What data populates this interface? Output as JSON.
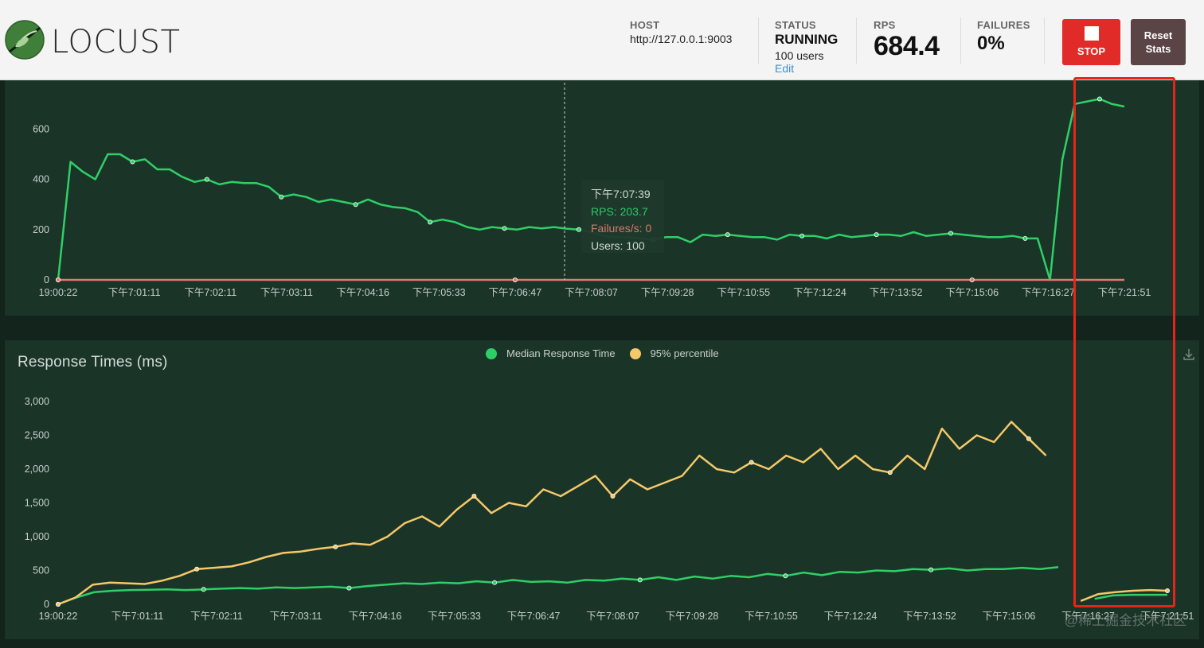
{
  "header": {
    "logo_text": "LOCUST",
    "host_label": "HOST",
    "host_value": "http://127.0.0.1:9003",
    "status_label": "STATUS",
    "status_value": "RUNNING",
    "users_value": "100 users",
    "edit_label": "Edit",
    "rps_label": "RPS",
    "rps_value": "684.4",
    "failures_label": "FAILURES",
    "failures_value": "0%",
    "stop_label": "STOP",
    "reset_label_1": "Reset",
    "reset_label_2": "Stats"
  },
  "tooltip": {
    "time": "下午7:07:39",
    "rps": "RPS: 203.7",
    "failures": "Failures/s: 0",
    "users": "Users: 100"
  },
  "watermark": "@稀土掘金技术社区",
  "colors": {
    "rps": "#2fcf67",
    "failures": "#e07a6e",
    "median": "#2fcf67",
    "p95": "#f5c869"
  },
  "chart_data": [
    {
      "type": "line",
      "title": "",
      "x_labels": [
        "19:00:22",
        "下午7:01:11",
        "下午7:02:11",
        "下午7:03:11",
        "下午7:04:16",
        "下午7:05:33",
        "下午7:06:47",
        "下午7:08:07",
        "下午7:09:28",
        "下午7:10:55",
        "下午7:12:24",
        "下午7:13:52",
        "下午7:15:06",
        "下午7:16:27",
        "下午7:21:51"
      ],
      "y_ticks": [
        0,
        200,
        400,
        600
      ],
      "ylim": [
        0,
        750
      ],
      "series": [
        {
          "name": "RPS",
          "values": [
            0,
            470,
            430,
            400,
            500,
            500,
            470,
            480,
            440,
            440,
            410,
            390,
            400,
            380,
            390,
            385,
            385,
            370,
            330,
            340,
            330,
            310,
            320,
            310,
            300,
            320,
            300,
            290,
            285,
            270,
            230,
            240,
            230,
            210,
            200,
            210,
            205,
            200,
            210,
            205,
            210,
            203.7,
            200,
            190,
            175,
            170,
            170,
            165,
            160,
            170,
            170,
            150,
            180,
            175,
            180,
            175,
            170,
            170,
            160,
            180,
            175,
            175,
            165,
            180,
            170,
            175,
            180,
            180,
            175,
            190,
            175,
            180,
            185,
            180,
            175,
            170,
            170,
            175,
            165,
            165,
            0,
            480,
            700,
            710,
            720,
            700,
            690
          ]
        },
        {
          "name": "Failures/s",
          "values": [
            0,
            0,
            0,
            0,
            0,
            0,
            0,
            0,
            0,
            0,
            0,
            0,
            0,
            0,
            0
          ]
        }
      ]
    },
    {
      "type": "line",
      "title": "Response Times (ms)",
      "legend": [
        "Median Response Time",
        "95% percentile"
      ],
      "x_labels": [
        "19:00:22",
        "下午7:01:11",
        "下午7:02:11",
        "下午7:03:11",
        "下午7:04:16",
        "下午7:05:33",
        "下午7:06:47",
        "下午7:08:07",
        "下午7:09:28",
        "下午7:10:55",
        "下午7:12:24",
        "下午7:13:52",
        "下午7:15:06",
        "下午7:16:27",
        "下午7:21:51"
      ],
      "y_ticks": [
        "0",
        "500",
        "1,000",
        "1,500",
        "2,000",
        "2,500",
        "3,000"
      ],
      "ylim": [
        0,
        3000
      ],
      "series": [
        {
          "name": "Median Response Time",
          "values": [
            0,
            100,
            180,
            200,
            210,
            215,
            220,
            210,
            220,
            230,
            240,
            230,
            250,
            240,
            250,
            260,
            240,
            270,
            290,
            310,
            300,
            320,
            310,
            340,
            320,
            360,
            330,
            340,
            320,
            360,
            350,
            380,
            360,
            400,
            360,
            410,
            380,
            420,
            400,
            450,
            420,
            470,
            430,
            480,
            470,
            500,
            490,
            520,
            510,
            530,
            500,
            520,
            520,
            540,
            520,
            550,
            null,
            80,
            130,
            140,
            140,
            140
          ]
        },
        {
          "name": "95% percentile",
          "values": [
            0,
            100,
            290,
            320,
            310,
            300,
            350,
            420,
            520,
            540,
            560,
            620,
            700,
            760,
            780,
            820,
            850,
            900,
            880,
            1000,
            1200,
            1300,
            1150,
            1400,
            1600,
            1350,
            1500,
            1450,
            1700,
            1600,
            1750,
            1900,
            1600,
            1850,
            1700,
            1800,
            1900,
            2200,
            2000,
            1950,
            2100,
            2000,
            2200,
            2100,
            2300,
            2000,
            2200,
            2000,
            1950,
            2200,
            2000,
            2600,
            2300,
            2500,
            2400,
            2700,
            2450,
            2200,
            null,
            50,
            150,
            180,
            200,
            210,
            200
          ]
        }
      ]
    }
  ]
}
